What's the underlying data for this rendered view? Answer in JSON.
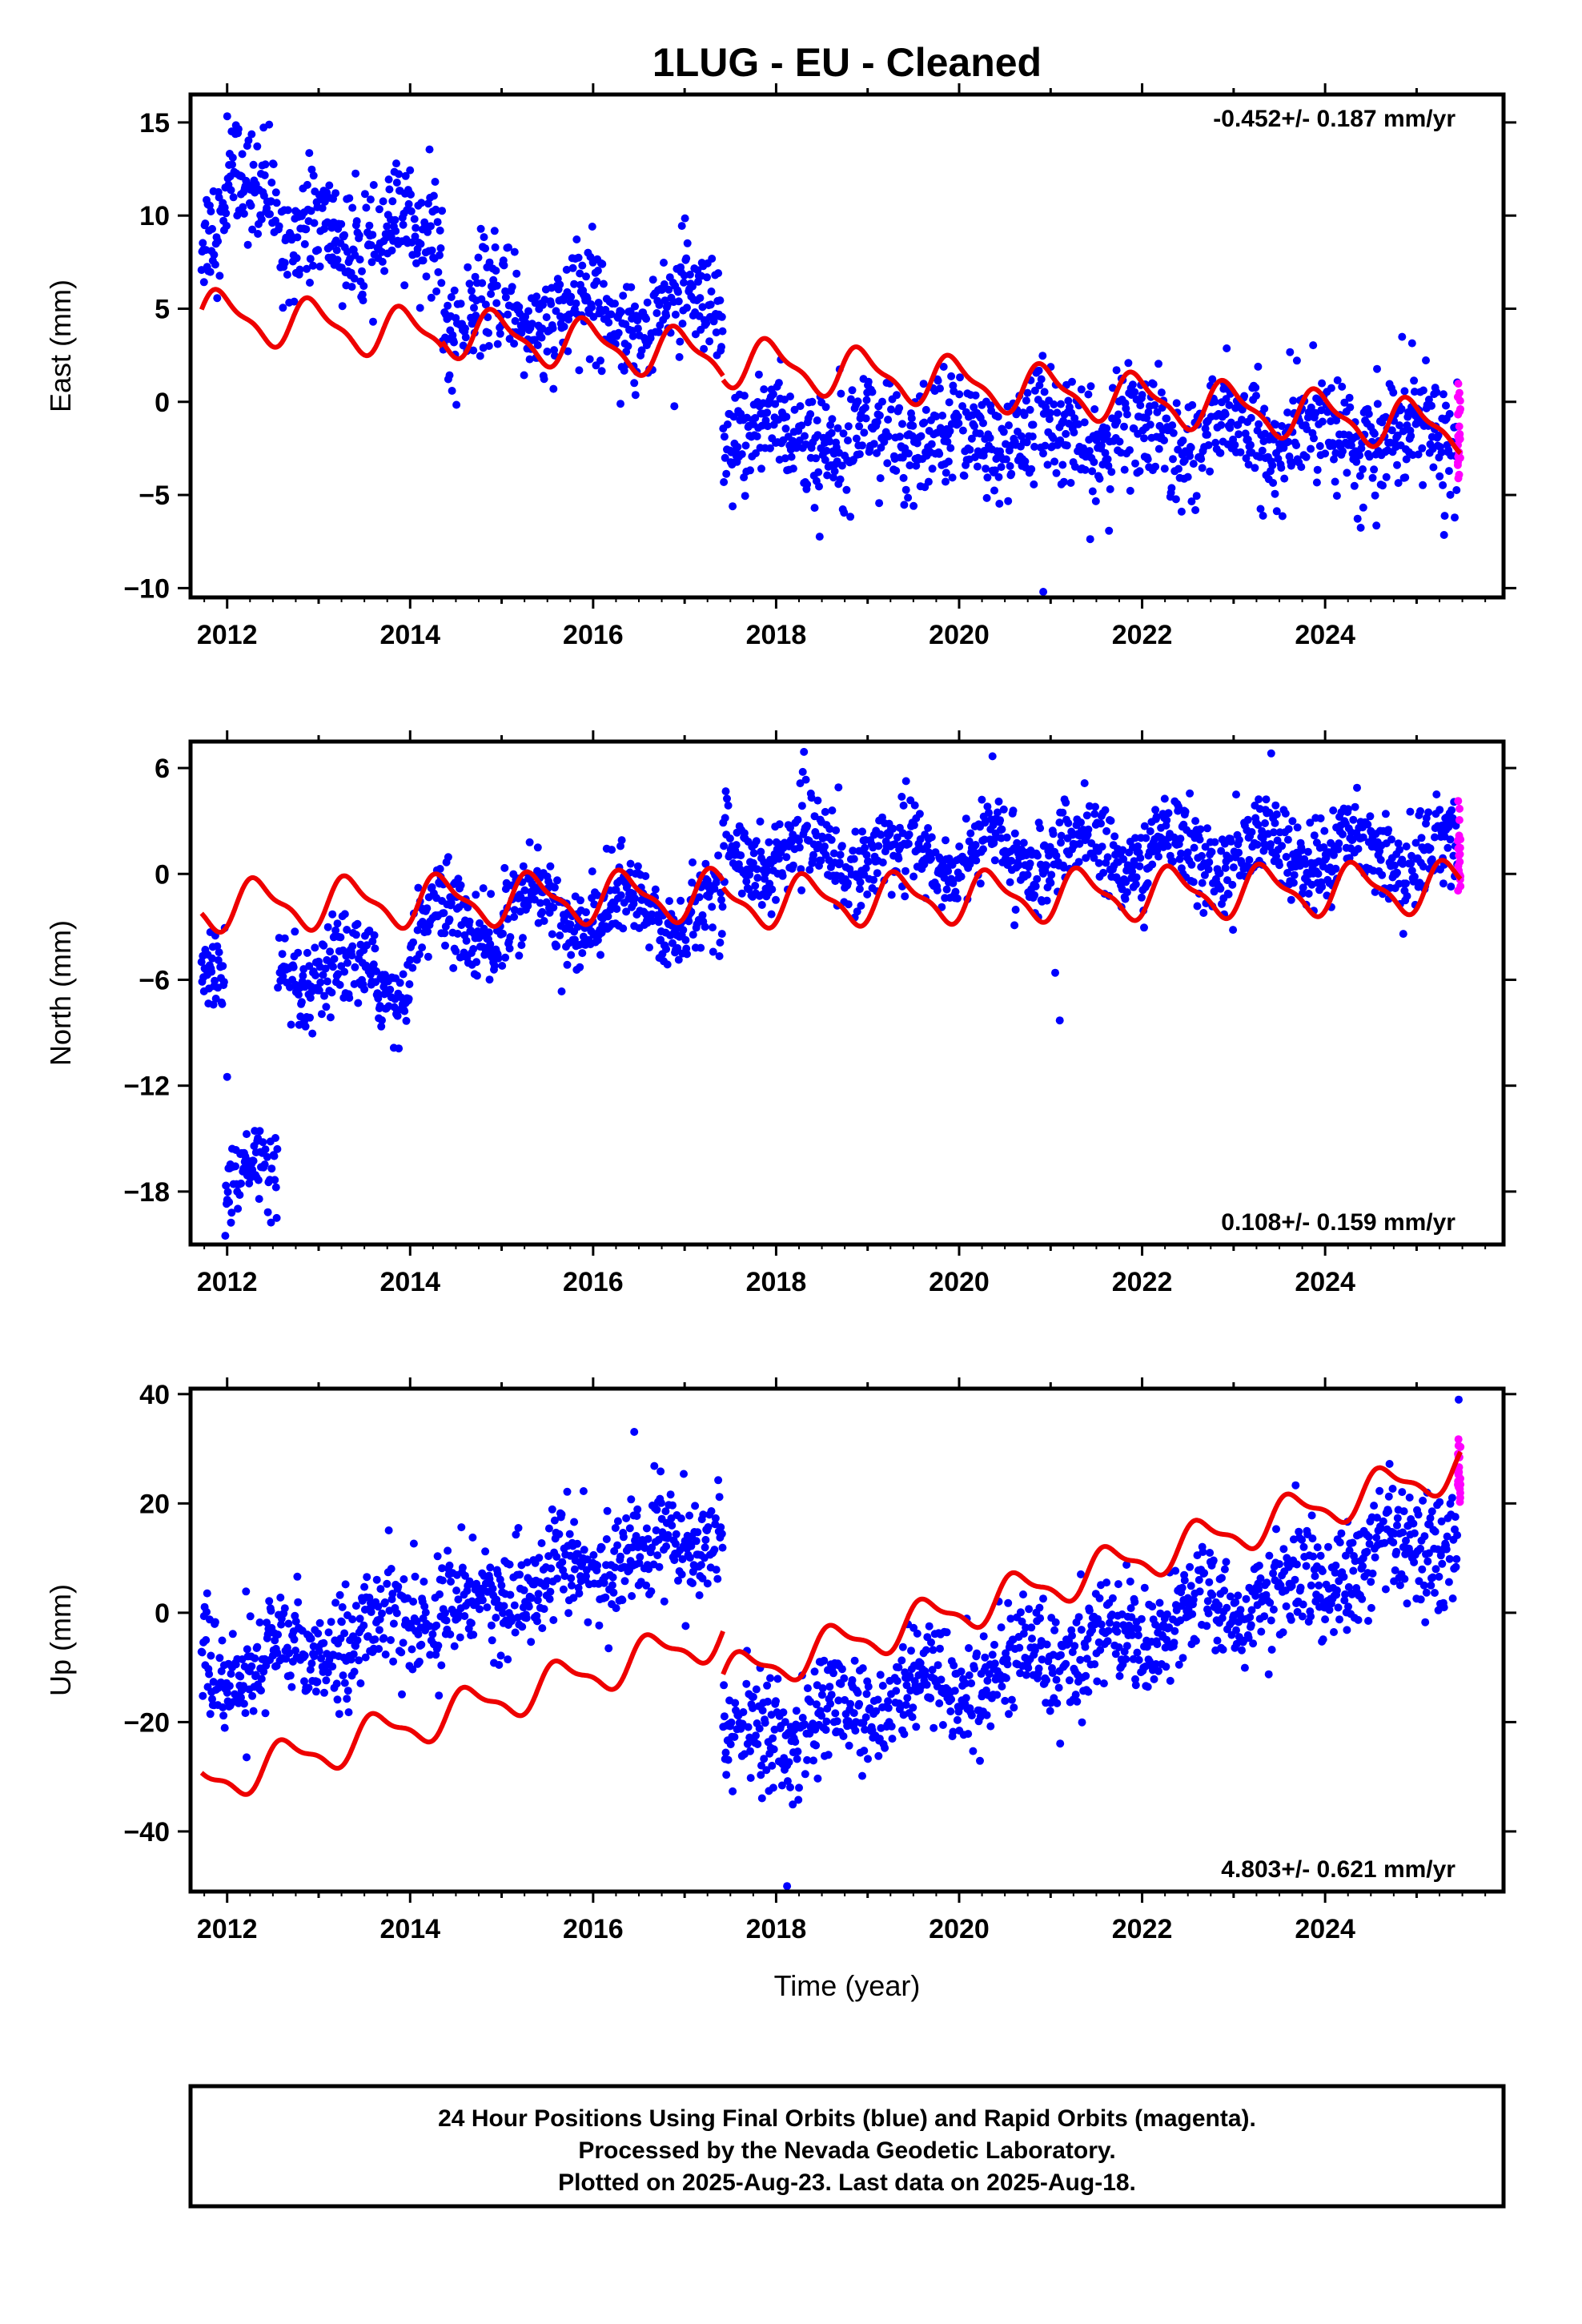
{
  "title": "1LUG  - EU - Cleaned",
  "footer": {
    "lines": [
      "24 Hour Positions Using Final Orbits (blue) and Rapid Orbits (magenta).",
      "Processed by the Nevada Geodetic Laboratory.",
      "Plotted on 2025-Aug-23. Last data on 2025-Aug-18."
    ]
  },
  "colors": {
    "final": "#0000ff",
    "rapid": "#ff00ff",
    "model": "#ee0000"
  },
  "chart_data": [
    {
      "type": "scatter",
      "name": "east",
      "ylabel": "East (mm)",
      "xlabel": "",
      "xlim": [
        2011.6,
        2025.95
      ],
      "ylim": [
        -10.5,
        16.5
      ],
      "xticks": [
        2012,
        2014,
        2016,
        2018,
        2020,
        2022,
        2024
      ],
      "yticks": [
        -10,
        -5,
        0,
        5,
        10,
        15
      ],
      "ytick_labels": [
        "−10",
        "−5",
        "0",
        "5",
        "10",
        "15"
      ],
      "rate": "-0.452+/- 0.187 mm/yr",
      "rate_position": "top-right",
      "data_start": 2011.72,
      "data_end": 2025.48,
      "rapid_start": 2025.45,
      "seg_means": [
        [
          2011.72,
          2012.0,
          8.5
        ],
        [
          2012.0,
          2012.55,
          12.0
        ],
        [
          2012.55,
          2014.35,
          8.8
        ],
        [
          2014.35,
          2017.42,
          4.8
        ],
        [
          2017.42,
          2025.48,
          -1.8
        ]
      ],
      "scatter_sd": 1.5,
      "outliers": [
        [
          2020.92,
          -10.2
        ]
      ],
      "model_segments": [
        {
          "x0": 2011.72,
          "x1": 2014.35,
          "offset": 4.7,
          "trend": -0.45,
          "amp": 1.2,
          "phase": 0.3
        },
        {
          "x0": 2014.35,
          "x1": 2017.42,
          "offset": 3.8,
          "trend": -0.45,
          "amp": 1.2,
          "phase": 0.3
        },
        {
          "x0": 2017.42,
          "x1": 2025.48,
          "offset": 2.2,
          "trend": -0.45,
          "amp": 1.2,
          "phase": 0.3
        }
      ]
    },
    {
      "type": "scatter",
      "name": "north",
      "ylabel": "North (mm)",
      "xlabel": "",
      "xlim": [
        2011.6,
        2025.95
      ],
      "ylim": [
        -21,
        7.5
      ],
      "xticks": [
        2012,
        2014,
        2016,
        2018,
        2020,
        2022,
        2024
      ],
      "yticks": [
        -18,
        -12,
        -6,
        0,
        6
      ],
      "ytick_labels": [
        "−18",
        "−12",
        "−6",
        "0",
        "6"
      ],
      "rate": "0.108+/- 0.159 mm/yr",
      "rate_position": "bottom-right",
      "data_start": 2011.72,
      "data_end": 2025.48,
      "rapid_start": 2025.45,
      "seg_means": [
        [
          2011.72,
          2011.98,
          -4.5
        ],
        [
          2011.98,
          2012.55,
          -17.5
        ],
        [
          2012.55,
          2014.0,
          -5.8
        ],
        [
          2014.0,
          2015.0,
          -3.0
        ],
        [
          2015.0,
          2017.42,
          -2.2
        ],
        [
          2017.42,
          2025.48,
          1.2
        ]
      ],
      "scatter_sd": 1.2,
      "outliers": [
        [
          2021.1,
          -8.3
        ],
        [
          2021.05,
          -5.6
        ],
        [
          2012.0,
          -11.5
        ]
      ],
      "model_segments": [
        {
          "x0": 2011.72,
          "x1": 2017.42,
          "offset": -1.8,
          "trend": 0.108,
          "amp": 1.3,
          "phase": 0.9
        },
        {
          "x0": 2017.42,
          "x1": 2025.48,
          "offset": -1.6,
          "trend": 0.108,
          "amp": 1.3,
          "phase": 0.9
        }
      ]
    },
    {
      "type": "scatter",
      "name": "up",
      "ylabel": "Up (mm)",
      "xlabel": "Time (year)",
      "xlim": [
        2011.6,
        2025.95
      ],
      "ylim": [
        -51,
        41
      ],
      "xticks": [
        2012,
        2014,
        2016,
        2018,
        2020,
        2022,
        2024
      ],
      "yticks": [
        -40,
        -20,
        0,
        20,
        40
      ],
      "ytick_labels": [
        "−40",
        "−20",
        "0",
        "20",
        "40"
      ],
      "rate": "4.803+/- 0.621 mm/yr",
      "rate_position": "bottom-right",
      "data_start": 2011.72,
      "data_end": 2025.48,
      "rapid_start": 2025.45,
      "seg_means": [
        [
          2011.72,
          2017.42,
          -12.0,
          4.8
        ],
        [
          2017.42,
          2025.48,
          -25.0,
          4.8
        ]
      ],
      "scatter_sd": 5.0,
      "outliers": [
        [
          2018.12,
          -50.0
        ],
        [
          2025.46,
          39.0
        ]
      ],
      "model_segments": [
        {
          "x0": 2011.72,
          "x1": 2017.42,
          "offset": -31.5,
          "trend": 4.803,
          "amp": 3.5,
          "phase": 0.6
        },
        {
          "x0": 2017.42,
          "x1": 2025.48,
          "offset": -12.0,
          "trend": 4.803,
          "amp": 3.5,
          "phase": 0.6
        }
      ]
    }
  ]
}
